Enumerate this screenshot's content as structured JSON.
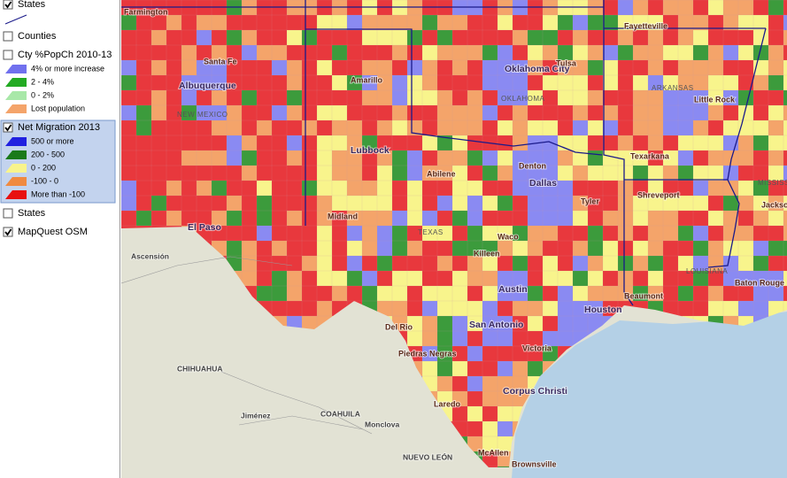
{
  "legend": {
    "layers": [
      {
        "label": "States",
        "checked": true
      },
      {
        "label": "Counties",
        "checked": false
      },
      {
        "label": "Cty %PopCh 2010-13",
        "checked": false,
        "classes": [
          "4% or more increase",
          "2 - 4%",
          "0 - 2%",
          "Lost population"
        ],
        "class_colors": [
          "#7070ee",
          "#22aa22",
          "#a8e8a8",
          "#f4a46a"
        ]
      },
      {
        "label": "Net Migration 2013",
        "checked": true,
        "selected": true,
        "classes": [
          "500 or more",
          "200 - 500",
          "0 - 200",
          "-100 - 0",
          "More than -100"
        ],
        "class_colors": [
          "#2020e0",
          "#1a7a1a",
          "#f8f48c",
          "#f08a40",
          "#e81010"
        ]
      },
      {
        "label": "States",
        "checked": false
      },
      {
        "label": "MapQuest OSM",
        "checked": true
      }
    ]
  },
  "map_labels": [
    "Farmington",
    "Santa Fe",
    "Albuquerque",
    "NEW MEXICO",
    "Amarillo",
    "Oklahoma City",
    "OKLAHOMA",
    "Tulsa",
    "Fayetteville",
    "ARKANSAS",
    "Little Rock",
    "Texarkana",
    "Lubbock",
    "Denton",
    "Dallas",
    "Tyler",
    "Shreveport",
    "Abilene",
    "Midland",
    "TEXAS",
    "El Paso",
    "Ascensión",
    "Waco",
    "Killeen",
    "LOUISIANA",
    "Austin",
    "Houston",
    "Beaumont",
    "Baton Rouge",
    "San Antonio",
    "Del Rio",
    "Victoria",
    "Piedras Negras",
    "CHIHUAHUA",
    "Corpus Christi",
    "Laredo",
    "COAHUILA",
    "Jiménez",
    "Monclova",
    "NUEVO LEÓN",
    "McAllen",
    "Brownsville",
    "MISSISSIPPI",
    "Jackson"
  ]
}
